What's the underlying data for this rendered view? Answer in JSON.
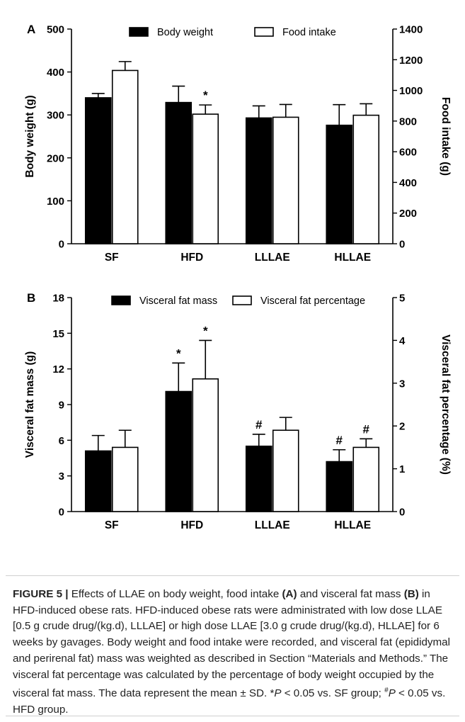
{
  "chart_data": [
    {
      "type": "bar",
      "panel_label": "A",
      "categories": [
        "SF",
        "HFD",
        "LLLAE",
        "HLLAE"
      ],
      "ylabel": "Body weight (g)",
      "ylabel_right": "Food intake (g)",
      "ylim": [
        0,
        500
      ],
      "ylim_right": [
        0,
        1400
      ],
      "yticks": [
        "0",
        "100",
        "200",
        "300",
        "400",
        "500"
      ],
      "yticks_right": [
        "0",
        "200",
        "400",
        "600",
        "800",
        "1000",
        "1200",
        "1400"
      ],
      "legend_position": "top",
      "series": [
        {
          "name": "Body weight",
          "axis": "left",
          "fill": "#000000",
          "values": [
            340,
            329,
            293,
            276
          ],
          "errors": [
            10,
            38,
            28,
            48
          ],
          "marks": [
            "",
            "",
            "",
            ""
          ]
        },
        {
          "name": "Food intake",
          "axis": "right",
          "fill": "#ffffff",
          "values": [
            1130,
            845,
            825,
            838
          ],
          "errors": [
            58,
            60,
            83,
            75
          ],
          "marks": [
            "",
            "*",
            "",
            ""
          ]
        }
      ]
    },
    {
      "type": "bar",
      "panel_label": "B",
      "categories": [
        "SF",
        "HFD",
        "LLLAE",
        "HLLAE"
      ],
      "ylabel": "Visceral fat mass (g)",
      "ylabel_right": "Visceral fat percentage (%)",
      "ylim": [
        0,
        18
      ],
      "ylim_right": [
        0,
        5
      ],
      "yticks": [
        "0",
        "3",
        "6",
        "9",
        "12",
        "15",
        "18"
      ],
      "yticks_right": [
        "0",
        "1",
        "2",
        "3",
        "4",
        "5"
      ],
      "legend_position": "top",
      "series": [
        {
          "name": "Visceral fat mass",
          "axis": "left",
          "fill": "#000000",
          "values": [
            5.1,
            10.1,
            5.5,
            4.2
          ],
          "errors": [
            1.3,
            2.4,
            1.0,
            1.0
          ],
          "marks": [
            "",
            "*",
            "#",
            "#"
          ]
        },
        {
          "name": "Visceral fat percentage",
          "axis": "right",
          "fill": "#ffffff",
          "values": [
            1.5,
            3.1,
            1.9,
            1.5
          ],
          "errors": [
            0.4,
            0.9,
            0.3,
            0.2
          ],
          "marks": [
            "",
            "*",
            "",
            "#"
          ]
        }
      ]
    }
  ],
  "caption": {
    "label": "FIGURE 5 |",
    "segments": [
      {
        "t": " Effects of LLAE on body weight, food intake ",
        "b": false
      },
      {
        "t": "(A)",
        "b": true
      },
      {
        "t": " and visceral fat mass ",
        "b": false
      },
      {
        "t": "(B)",
        "b": true
      },
      {
        "t": " in HFD-induced obese rats. HFD-induced obese rats were administrated with low dose LLAE [0.5 g crude drug/(kg.d), LLLAE] or high dose LLAE [3.0 g crude drug/(kg.d), HLLAE] for 6 weeks by gavages. Body weight and food intake were recorded, and visceral fat (epididymal and perirenal fat) mass was weighted as described in Section “Materials and Methods.” The visceral fat percentage was calculated by the percentage of body weight occupied by the visceral fat mass. The data represent the mean ± SD. *",
        "b": false
      },
      {
        "t": "P",
        "b": false,
        "i": true
      },
      {
        "t": " < 0.05 vs. SF group; ",
        "b": false
      },
      {
        "t": "#",
        "b": false,
        "sup": true
      },
      {
        "t": "P",
        "b": false,
        "i": true
      },
      {
        "t": " < 0.05 vs. HFD group.",
        "b": false
      }
    ]
  }
}
